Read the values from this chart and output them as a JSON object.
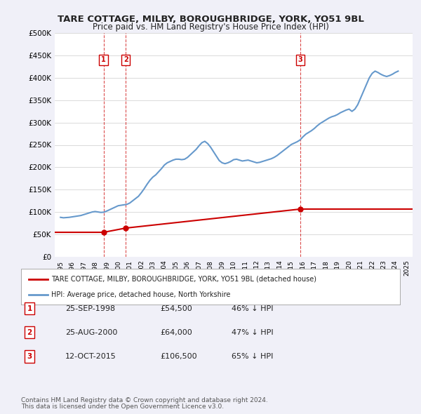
{
  "title": "TARE COTTAGE, MILBY, BOROUGHBRIDGE, YORK, YO51 9BL",
  "subtitle": "Price paid vs. HM Land Registry's House Price Index (HPI)",
  "background_color": "#f0f0f8",
  "plot_bg_color": "#ffffff",
  "ylim": [
    0,
    500000
  ],
  "yticks": [
    0,
    50000,
    100000,
    150000,
    200000,
    250000,
    300000,
    350000,
    400000,
    450000,
    500000
  ],
  "ytick_labels": [
    "£0",
    "£50K",
    "£100K",
    "£150K",
    "£200K",
    "£250K",
    "£300K",
    "£350K",
    "£400K",
    "£450K",
    "£500K"
  ],
  "xlim_start": 1994.5,
  "xlim_end": 2025.5,
  "sale_dates": [
    1998.73,
    2000.65,
    2015.78
  ],
  "sale_prices": [
    54500,
    64000,
    106500
  ],
  "sale_labels": [
    "1",
    "2",
    "3"
  ],
  "red_line_color": "#cc0000",
  "blue_line_color": "#6699cc",
  "dashed_line_color": "#cc0000",
  "hpi_color": "#6699cc",
  "property_line_color": "#cc0000",
  "legend_label_red": "TARE COTTAGE, MILBY, BOROUGHBRIDGE, YORK, YO51 9BL (detached house)",
  "legend_label_blue": "HPI: Average price, detached house, North Yorkshire",
  "table_rows": [
    {
      "num": "1",
      "date": "25-SEP-1998",
      "price": "£54,500",
      "hpi": "46% ↓ HPI"
    },
    {
      "num": "2",
      "date": "25-AUG-2000",
      "price": "£64,000",
      "hpi": "47% ↓ HPI"
    },
    {
      "num": "3",
      "date": "12-OCT-2015",
      "price": "£106,500",
      "hpi": "65% ↓ HPI"
    }
  ],
  "footer1": "Contains HM Land Registry data © Crown copyright and database right 2024.",
  "footer2": "This data is licensed under the Open Government Licence v3.0.",
  "hpi_data_x": [
    1995.0,
    1995.25,
    1995.5,
    1995.75,
    1996.0,
    1996.25,
    1996.5,
    1996.75,
    1997.0,
    1997.25,
    1997.5,
    1997.75,
    1998.0,
    1998.25,
    1998.5,
    1998.75,
    1999.0,
    1999.25,
    1999.5,
    1999.75,
    2000.0,
    2000.25,
    2000.5,
    2000.75,
    2001.0,
    2001.25,
    2001.5,
    2001.75,
    2002.0,
    2002.25,
    2002.5,
    2002.75,
    2003.0,
    2003.25,
    2003.5,
    2003.75,
    2004.0,
    2004.25,
    2004.5,
    2004.75,
    2005.0,
    2005.25,
    2005.5,
    2005.75,
    2006.0,
    2006.25,
    2006.5,
    2006.75,
    2007.0,
    2007.25,
    2007.5,
    2007.75,
    2008.0,
    2008.25,
    2008.5,
    2008.75,
    2009.0,
    2009.25,
    2009.5,
    2009.75,
    2010.0,
    2010.25,
    2010.5,
    2010.75,
    2011.0,
    2011.25,
    2011.5,
    2011.75,
    2012.0,
    2012.25,
    2012.5,
    2012.75,
    2013.0,
    2013.25,
    2013.5,
    2013.75,
    2014.0,
    2014.25,
    2014.5,
    2014.75,
    2015.0,
    2015.25,
    2015.5,
    2015.75,
    2016.0,
    2016.25,
    2016.5,
    2016.75,
    2017.0,
    2017.25,
    2017.5,
    2017.75,
    2018.0,
    2018.25,
    2018.5,
    2018.75,
    2019.0,
    2019.25,
    2019.5,
    2019.75,
    2020.0,
    2020.25,
    2020.5,
    2020.75,
    2021.0,
    2021.25,
    2021.5,
    2021.75,
    2022.0,
    2022.25,
    2022.5,
    2022.75,
    2023.0,
    2023.25,
    2023.5,
    2023.75,
    2024.0,
    2024.25
  ],
  "hpi_data_y": [
    88000,
    87000,
    87500,
    88000,
    89000,
    90000,
    91000,
    92000,
    94000,
    96000,
    98000,
    100000,
    101000,
    100000,
    99000,
    99500,
    102000,
    105000,
    108000,
    111000,
    114000,
    115000,
    116000,
    117000,
    120000,
    125000,
    130000,
    135000,
    143000,
    152000,
    162000,
    171000,
    178000,
    183000,
    190000,
    197000,
    205000,
    210000,
    213000,
    216000,
    218000,
    218000,
    217000,
    218000,
    222000,
    228000,
    234000,
    240000,
    248000,
    255000,
    258000,
    253000,
    245000,
    235000,
    225000,
    215000,
    210000,
    208000,
    210000,
    213000,
    217000,
    218000,
    216000,
    214000,
    215000,
    216000,
    214000,
    212000,
    210000,
    211000,
    213000,
    215000,
    217000,
    219000,
    222000,
    226000,
    231000,
    236000,
    241000,
    246000,
    251000,
    254000,
    257000,
    261000,
    268000,
    274000,
    278000,
    282000,
    287000,
    293000,
    298000,
    302000,
    306000,
    310000,
    313000,
    315000,
    318000,
    322000,
    325000,
    328000,
    330000,
    325000,
    330000,
    340000,
    355000,
    370000,
    385000,
    400000,
    410000,
    415000,
    412000,
    408000,
    405000,
    403000,
    405000,
    408000,
    412000,
    415000
  ],
  "prop_line_x": [
    1994.5,
    1998.73,
    1998.73,
    2000.65,
    2000.65,
    2015.78,
    2015.78,
    2025.5
  ],
  "prop_line_y": [
    54500,
    54500,
    54500,
    64000,
    64000,
    106500,
    106500,
    106500
  ]
}
